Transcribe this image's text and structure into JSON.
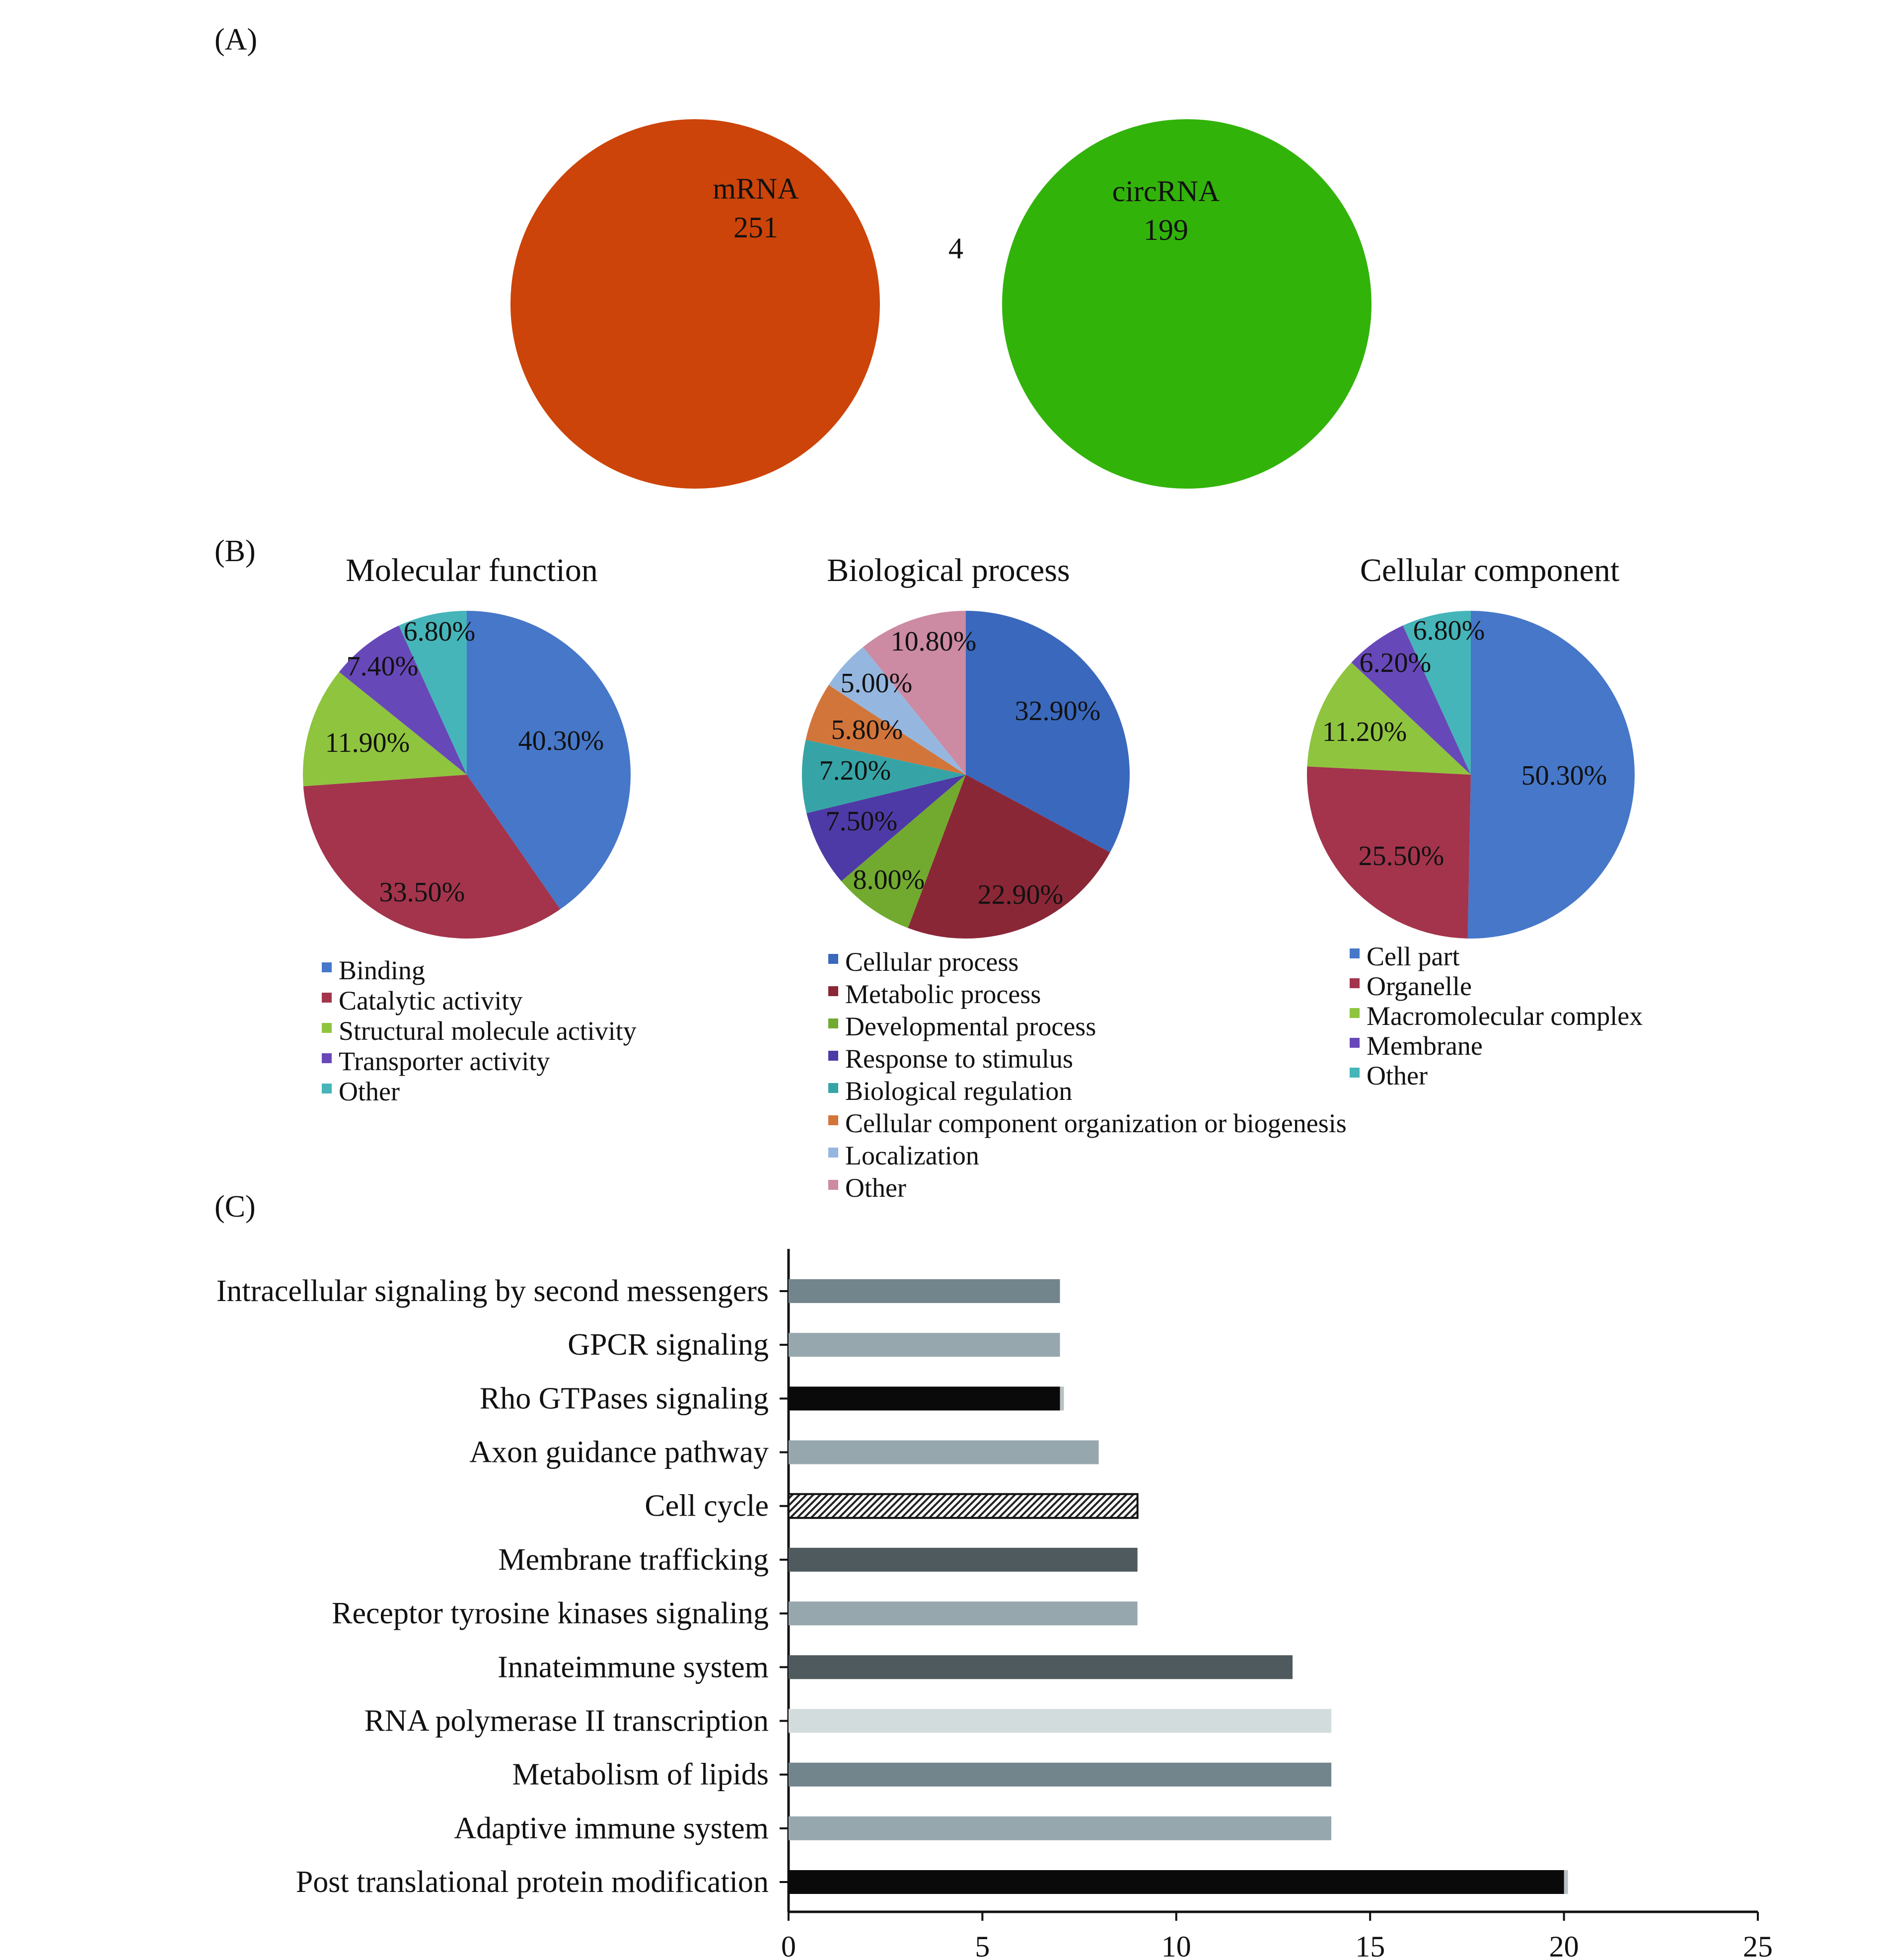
{
  "panels": {
    "a": "(A)",
    "b": "(B)",
    "c": "(C)"
  },
  "colors": {
    "mrna": "#cc4409",
    "circrna": "#32b30a",
    "overlap": "#d6d12e"
  },
  "chart_data": [
    {
      "type": "venn",
      "sets": [
        {
          "name": "mRNA",
          "only": 251
        },
        {
          "name": "circRNA",
          "only": 199
        }
      ],
      "intersection": 4
    },
    {
      "type": "pie",
      "title": "Molecular function",
      "slices": [
        {
          "label": "Binding",
          "value": 40.3,
          "text": "40.30%",
          "color": "#4677c9"
        },
        {
          "label": "Catalytic activity",
          "value": 33.5,
          "text": "33.50%",
          "color": "#a3344c"
        },
        {
          "label": "Structural molecule activity",
          "value": 11.9,
          "text": "11.90%",
          "color": "#8fc43e"
        },
        {
          "label": "Transporter activity",
          "value": 7.4,
          "text": "7.40%",
          "color": "#6748b8"
        },
        {
          "label": "Other",
          "value": 6.8,
          "text": "6.80%",
          "color": "#45b5b9"
        }
      ]
    },
    {
      "type": "pie",
      "title": "Biological process",
      "slices": [
        {
          "label": "Cellular process",
          "value": 32.9,
          "text": "32.90%",
          "color": "#3a68bd"
        },
        {
          "label": "Metabolic process",
          "value": 22.9,
          "text": "22.90%",
          "color": "#8a2737"
        },
        {
          "label": "Developmental process",
          "value": 8.0,
          "text": "8.00%",
          "color": "#72aa2f"
        },
        {
          "label": "Response to stimulus",
          "value": 7.5,
          "text": "7.50%",
          "color": "#4e3aa6"
        },
        {
          "label": "Biological regulation",
          "value": 7.2,
          "text": "7.20%",
          "color": "#36a4a6"
        },
        {
          "label": "Cellular component organization or biogenesis",
          "value": 5.8,
          "text": "5.80%",
          "color": "#d2753a"
        },
        {
          "label": "Localization",
          "value": 5.0,
          "text": "5.00%",
          "color": "#95b7df"
        },
        {
          "label": "Other",
          "value": 10.8,
          "text": "10.80%",
          "color": "#cc8aa3"
        }
      ]
    },
    {
      "type": "pie",
      "title": "Cellular component",
      "slices": [
        {
          "label": "Cell part",
          "value": 50.3,
          "text": "50.30%",
          "color": "#4677c9"
        },
        {
          "label": "Organelle",
          "value": 25.5,
          "text": "25.50%",
          "color": "#a3344c"
        },
        {
          "label": "Macromolecular complex",
          "value": 11.2,
          "text": "11.20%",
          "color": "#8fc43e"
        },
        {
          "label": "Membrane",
          "value": 6.2,
          "text": "6.20%",
          "color": "#6748b8"
        },
        {
          "label": "Other",
          "value": 6.8,
          "text": "6.80%",
          "color": "#45b5b9"
        }
      ]
    },
    {
      "type": "bar",
      "orientation": "horizontal",
      "categories": [
        "Intracellular signaling by second messengers",
        "GPCR signaling",
        "Rho GTPases signaling",
        "Axon guidance pathway",
        "Cell cycle",
        "Membrane trafficking",
        "Receptor tyrosine kinases signaling",
        "Innateimmune system",
        "RNA polymerase II transcription",
        "Metabolism of lipids",
        "Adaptive immune system",
        "Post translational protein modification"
      ],
      "values": [
        7,
        7,
        7,
        8,
        9,
        9,
        9,
        13,
        14,
        14,
        14,
        20
      ],
      "bar_colors": [
        "#73858c",
        "#97a7ae",
        "#0a0a0a",
        "#97a7ae",
        "hatched",
        "#4f5a5e",
        "#97a7ae",
        "#4f5a5e",
        "#d3dcdc",
        "#73858c",
        "#97a7ae",
        "#0a0a0a"
      ],
      "xlim": [
        0,
        25
      ],
      "xticks": [
        0,
        5,
        10,
        15,
        20,
        25
      ]
    }
  ]
}
